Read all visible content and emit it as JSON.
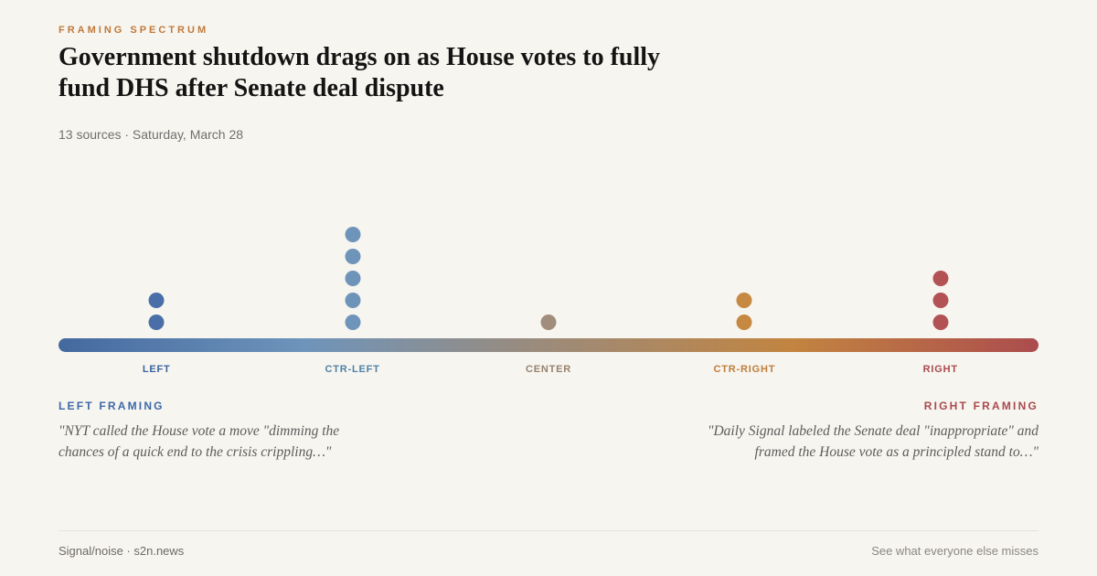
{
  "header": {
    "kicker": "FRAMING SPECTRUM",
    "title": "Government shutdown drags on as House votes to fully fund DHS after Senate deal dispute",
    "title_lines": [
      "Government shutdown drags on as House votes to fully",
      "fund DHS after Senate deal dispute"
    ],
    "meta": "13 sources · Saturday, March 28"
  },
  "chart_data": {
    "type": "scatter",
    "title": "Framing spectrum dot plot",
    "categories": [
      "LEFT",
      "CTR-LEFT",
      "CENTER",
      "CTR-RIGHT",
      "RIGHT"
    ],
    "values": [
      2,
      5,
      1,
      2,
      3
    ],
    "total_sources": 13,
    "positions_pct": [
      10,
      30,
      50,
      70,
      90
    ],
    "dot_colors": [
      "#4a6fa8",
      "#6f94ba",
      "#a18d7b",
      "#c68942",
      "#b25254"
    ],
    "label_colors": [
      "#3a64a0",
      "#4f81a8",
      "#95826f",
      "#bd7e3c",
      "#ab4a4d"
    ],
    "axis_gradient": [
      "#44699f",
      "#6e94bb",
      "#9d8b79",
      "#c28440",
      "#ac4c4e"
    ],
    "legend_position": "none",
    "grid": false
  },
  "framing": {
    "left_label": "LEFT FRAMING",
    "left_quote": "\"NYT called the House vote a move \"dimming the chances of a quick end to the crisis crippling…\"",
    "right_label": "RIGHT FRAMING",
    "right_quote": "\"Daily Signal labeled the Senate deal \"inappropriate\" and framed the House vote as a principled stand to…\""
  },
  "footer": {
    "brand": "Signal/noise · s2n.news",
    "tagline": "See what everyone else misses"
  },
  "colors": {
    "background": "#f7f5ef",
    "kicker": "#c0793b",
    "title": "#141414",
    "meta": "#6f6f6f",
    "left_accent": "#3c68a8",
    "right_accent": "#a94a4e",
    "quote": "#5c5c5c",
    "divider": "#e7e4db",
    "footer_brand": "#6e6a64",
    "footer_tagline": "#8b8780"
  }
}
